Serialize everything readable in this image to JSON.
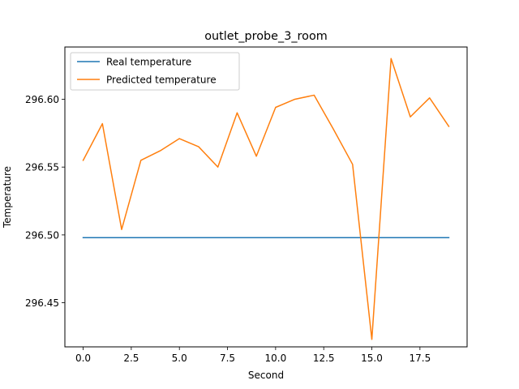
{
  "chart_data": {
    "type": "line",
    "title": "outlet_probe_3_room",
    "xlabel": "Second",
    "ylabel": "Temperature",
    "xlim": [
      -0.95,
      19.95
    ],
    "ylim": [
      296.4175,
      296.6385
    ],
    "x_ticks": [
      0.0,
      2.5,
      5.0,
      7.5,
      10.0,
      12.5,
      15.0,
      17.5
    ],
    "x_tick_labels": [
      "0.0",
      "2.5",
      "5.0",
      "7.5",
      "10.0",
      "12.5",
      "15.0",
      "17.5"
    ],
    "y_ticks": [
      296.45,
      296.5,
      296.55,
      296.6
    ],
    "y_tick_labels": [
      "296.45",
      "296.50",
      "296.55",
      "296.60"
    ],
    "grid": false,
    "legend_position": "upper-left",
    "x": [
      0,
      1,
      2,
      3,
      4,
      5,
      6,
      7,
      8,
      9,
      10,
      11,
      12,
      13,
      14,
      15,
      16,
      17,
      18,
      19
    ],
    "series": [
      {
        "name": "Real temperature",
        "color": "#1f77b4",
        "values": [
          296.498,
          296.498,
          296.498,
          296.498,
          296.498,
          296.498,
          296.498,
          296.498,
          296.498,
          296.498,
          296.498,
          296.498,
          296.498,
          296.498,
          296.498,
          296.498,
          296.498,
          296.498,
          296.498,
          296.498
        ]
      },
      {
        "name": "Predicted temperature",
        "color": "#ff7f0e",
        "values": [
          296.555,
          296.582,
          296.504,
          296.555,
          296.562,
          296.571,
          296.565,
          296.55,
          296.59,
          296.558,
          296.594,
          296.6,
          296.603,
          296.578,
          296.552,
          296.423,
          296.63,
          296.587,
          296.601,
          296.58
        ]
      }
    ]
  }
}
